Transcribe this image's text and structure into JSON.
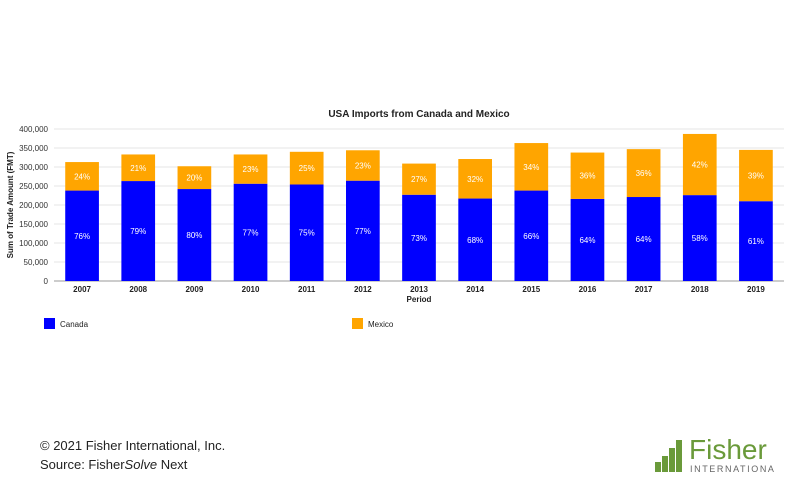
{
  "chart_data": {
    "type": "bar",
    "stacked": true,
    "title": "USA Imports from Canada and Mexico",
    "xlabel": "Period",
    "ylabel": "Sum of Trade Amount (FMT)",
    "ylim": [
      0,
      400000
    ],
    "yticks": [
      0,
      50000,
      100000,
      150000,
      200000,
      250000,
      300000,
      350000,
      400000
    ],
    "ytick_labels": [
      "0",
      "50,000",
      "100,000",
      "150,000",
      "200,000",
      "250,000",
      "300,000",
      "350,000",
      "400,000"
    ],
    "grid": true,
    "legend_position": "bottom",
    "categories": [
      "2007",
      "2008",
      "2009",
      "2010",
      "2011",
      "2012",
      "2013",
      "2014",
      "2015",
      "2016",
      "2017",
      "2018",
      "2019"
    ],
    "series": [
      {
        "name": "Canada",
        "color": "#0000ff",
        "values": [
          238000,
          263000,
          242000,
          256000,
          254000,
          264000,
          227000,
          217000,
          238000,
          216000,
          221000,
          226000,
          210000
        ],
        "labels": [
          "76%",
          "79%",
          "80%",
          "77%",
          "75%",
          "77%",
          "73%",
          "68%",
          "66%",
          "64%",
          "64%",
          "58%",
          "61%"
        ]
      },
      {
        "name": "Mexico",
        "color": "#ffa500",
        "values": [
          75000,
          70000,
          60000,
          77000,
          86000,
          80000,
          82000,
          104000,
          125000,
          122000,
          126000,
          161000,
          135000
        ],
        "labels": [
          "24%",
          "21%",
          "20%",
          "23%",
          "25%",
          "23%",
          "27%",
          "32%",
          "34%",
          "36%",
          "36%",
          "42%",
          "39%"
        ]
      }
    ]
  },
  "footer": {
    "copyright": "© 2021 Fisher International, Inc.",
    "source_prefix": "Source: Fisher",
    "source_italic": "Solve",
    "source_suffix": " Next"
  },
  "logo": {
    "name": "Fisher",
    "subtitle": "INTERNATIONAL",
    "color": "#6a9a3a"
  }
}
